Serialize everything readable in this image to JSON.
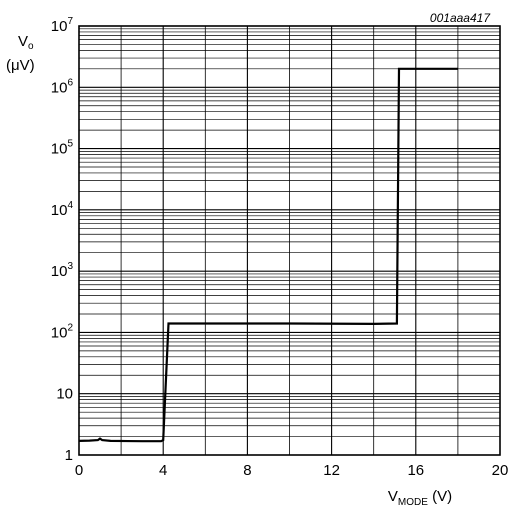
{
  "figure_id": "001aaa417",
  "chart_data": {
    "type": "line",
    "title": "",
    "xlabel": {
      "main": "V",
      "sub": "MODE",
      "unit": " (V)"
    },
    "ylabel": {
      "line1_main": "V",
      "line1_sub": "o",
      "line2": "(μV)"
    },
    "xlim": [
      0,
      20
    ],
    "ylim": [
      1,
      10000000
    ],
    "yscale": "log",
    "grid": true,
    "x_ticks": [
      0,
      4,
      8,
      12,
      16,
      20
    ],
    "x_tick_labels": [
      "0",
      "4",
      "8",
      "12",
      "16",
      "20"
    ],
    "y_ticks": [
      1,
      10,
      100,
      1000,
      10000,
      100000,
      1000000,
      10000000
    ],
    "y_tick_labels": [
      {
        "base": "1",
        "exp": ""
      },
      {
        "base": "10",
        "exp": ""
      },
      {
        "base": "10",
        "exp": "2"
      },
      {
        "base": "10",
        "exp": "3"
      },
      {
        "base": "10",
        "exp": "4"
      },
      {
        "base": "10",
        "exp": "5"
      },
      {
        "base": "10",
        "exp": "6"
      },
      {
        "base": "10",
        "exp": "7"
      }
    ],
    "series": [
      {
        "x": [
          0,
          0.5,
          0.9,
          1.0,
          1.1,
          1.5,
          3.0,
          3.9,
          4.0,
          4.25,
          6,
          10,
          14,
          15.1,
          15.2,
          18
        ],
        "y": [
          1.7,
          1.72,
          1.75,
          1.85,
          1.75,
          1.7,
          1.68,
          1.68,
          1.75,
          140,
          140,
          140,
          138,
          140,
          2000000,
          2000000
        ]
      }
    ]
  }
}
